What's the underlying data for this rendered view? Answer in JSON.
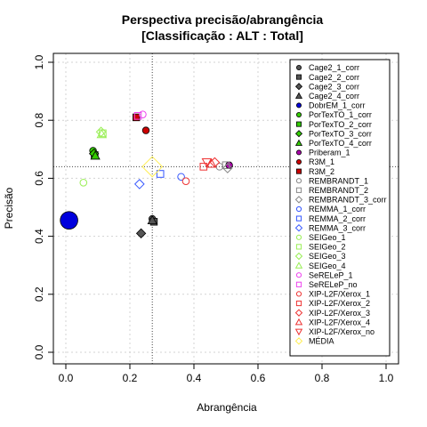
{
  "chart_data": {
    "type": "scatter",
    "title": [
      "Perspectiva precisão/abrangência",
      "[Classificação : ALT : Total]"
    ],
    "xlabel": "Abrangência",
    "ylabel": "Precisão",
    "xlim": [
      0,
      1
    ],
    "ylim": [
      0,
      1
    ],
    "xticks": [
      "0.0",
      "0.2",
      "0.4",
      "0.6",
      "0.8",
      "1.0"
    ],
    "yticks": [
      "0.0",
      "0.2",
      "0.4",
      "0.6",
      "0.8",
      "1.0"
    ],
    "grid": true,
    "legend_position": "right",
    "reference_lines": {
      "vertical_x": 0.27,
      "horizontal_y": 0.64
    },
    "series": [
      {
        "name": "Cage2_1_corr",
        "shape": "circle",
        "filled": true,
        "color": "#555555",
        "points": [
          {
            "x": 0.27,
            "y": 0.46
          }
        ]
      },
      {
        "name": "Cage2_2_corr",
        "shape": "square",
        "filled": true,
        "color": "#555555",
        "points": [
          {
            "x": 0.275,
            "y": 0.45
          }
        ]
      },
      {
        "name": "Cage2_3_corr",
        "shape": "diamond",
        "filled": true,
        "color": "#555555",
        "points": [
          {
            "x": 0.235,
            "y": 0.41
          }
        ]
      },
      {
        "name": "Cage2_4_corr",
        "shape": "triangle",
        "filled": true,
        "color": "#555555",
        "points": [
          {
            "x": 0.27,
            "y": 0.455
          }
        ]
      },
      {
        "name": "DobrEM_1_corr",
        "shape": "circle",
        "filled": true,
        "color": "#0000dd",
        "points": [
          {
            "x": 0.01,
            "y": 0.455,
            "size": 2.6
          }
        ]
      },
      {
        "name": "PorTexTO_1_corr",
        "shape": "circle",
        "filled": true,
        "color": "#33cc00",
        "points": [
          {
            "x": 0.085,
            "y": 0.695
          }
        ]
      },
      {
        "name": "PorTexTO_2_corr",
        "shape": "square",
        "filled": true,
        "color": "#33cc00",
        "points": [
          {
            "x": 0.09,
            "y": 0.68
          }
        ]
      },
      {
        "name": "PorTexTO_3_corr",
        "shape": "diamond",
        "filled": true,
        "color": "#33cc00",
        "points": [
          {
            "x": 0.088,
            "y": 0.685
          }
        ]
      },
      {
        "name": "PorTexTO_4_corr",
        "shape": "triangle",
        "filled": true,
        "color": "#33cc00",
        "points": [
          {
            "x": 0.092,
            "y": 0.678
          }
        ]
      },
      {
        "name": "Priberam_1",
        "shape": "circle",
        "filled": true,
        "color": "#aa00aa",
        "points": [
          {
            "x": 0.51,
            "y": 0.645
          }
        ]
      },
      {
        "name": "R3M_1",
        "shape": "circle",
        "filled": true,
        "color": "#cc0000",
        "points": [
          {
            "x": 0.25,
            "y": 0.765
          }
        ]
      },
      {
        "name": "R3M_2",
        "shape": "square",
        "filled": true,
        "color": "#cc0000",
        "points": [
          {
            "x": 0.22,
            "y": 0.81
          }
        ]
      },
      {
        "name": "REMBRANDT_1",
        "shape": "circle",
        "filled": false,
        "color": "#888888",
        "points": [
          {
            "x": 0.48,
            "y": 0.64
          }
        ]
      },
      {
        "name": "REMBRANDT_2",
        "shape": "square",
        "filled": false,
        "color": "#888888",
        "points": [
          {
            "x": 0.5,
            "y": 0.645
          }
        ]
      },
      {
        "name": "REMBRANDT_3_corr",
        "shape": "diamond",
        "filled": false,
        "color": "#888888",
        "points": [
          {
            "x": 0.505,
            "y": 0.635
          }
        ]
      },
      {
        "name": "REMMA_1_corr",
        "shape": "circle",
        "filled": false,
        "color": "#3355ff",
        "points": [
          {
            "x": 0.36,
            "y": 0.605
          }
        ]
      },
      {
        "name": "REMMA_2_corr",
        "shape": "square",
        "filled": false,
        "color": "#3355ff",
        "points": [
          {
            "x": 0.295,
            "y": 0.615
          }
        ]
      },
      {
        "name": "REMMA_3_corr",
        "shape": "diamond",
        "filled": false,
        "color": "#3355ff",
        "points": [
          {
            "x": 0.23,
            "y": 0.58
          }
        ]
      },
      {
        "name": "SEIGeo_1",
        "shape": "circle",
        "filled": false,
        "color": "#99ee55",
        "points": [
          {
            "x": 0.055,
            "y": 0.585
          }
        ]
      },
      {
        "name": "SEIGeo_2",
        "shape": "square",
        "filled": false,
        "color": "#99ee55",
        "points": [
          {
            "x": 0.115,
            "y": 0.755
          }
        ]
      },
      {
        "name": "SEIGeo_3",
        "shape": "diamond",
        "filled": false,
        "color": "#99ee55",
        "points": [
          {
            "x": 0.11,
            "y": 0.76
          }
        ]
      },
      {
        "name": "SEIGeo_4",
        "shape": "triangle",
        "filled": false,
        "color": "#99ee55",
        "points": [
          {
            "x": 0.112,
            "y": 0.752
          }
        ]
      },
      {
        "name": "SeRELeP_1",
        "shape": "circle",
        "filled": false,
        "color": "#ee44ee",
        "points": [
          {
            "x": 0.24,
            "y": 0.82
          }
        ]
      },
      {
        "name": "SeRELeP_no",
        "shape": "square",
        "filled": false,
        "color": "#ee44ee",
        "points": [
          {
            "x": 0.225,
            "y": 0.815
          }
        ]
      },
      {
        "name": "XIP-L2F/Xerox_1",
        "shape": "circle",
        "filled": false,
        "color": "#ee3333",
        "points": [
          {
            "x": 0.375,
            "y": 0.59
          }
        ]
      },
      {
        "name": "XIP-L2F/Xerox_2",
        "shape": "square",
        "filled": false,
        "color": "#ee3333",
        "points": [
          {
            "x": 0.43,
            "y": 0.64
          }
        ]
      },
      {
        "name": "XIP-L2F/Xerox_3",
        "shape": "diamond",
        "filled": false,
        "color": "#ee3333",
        "points": [
          {
            "x": 0.465,
            "y": 0.655
          }
        ]
      },
      {
        "name": "XIP-L2F/Xerox_4",
        "shape": "triangle",
        "filled": false,
        "color": "#ee3333",
        "points": [
          {
            "x": 0.455,
            "y": 0.65
          }
        ]
      },
      {
        "name": "XIP-L2F/Xerox_no",
        "shape": "triangle-down",
        "filled": false,
        "color": "#ee3333",
        "points": [
          {
            "x": 0.44,
            "y": 0.655
          }
        ]
      },
      {
        "name": "MÉDIA",
        "shape": "diamond",
        "filled": false,
        "color": "#ffee55",
        "points": [
          {
            "x": 0.27,
            "y": 0.64,
            "size": 2.2
          }
        ]
      }
    ]
  }
}
